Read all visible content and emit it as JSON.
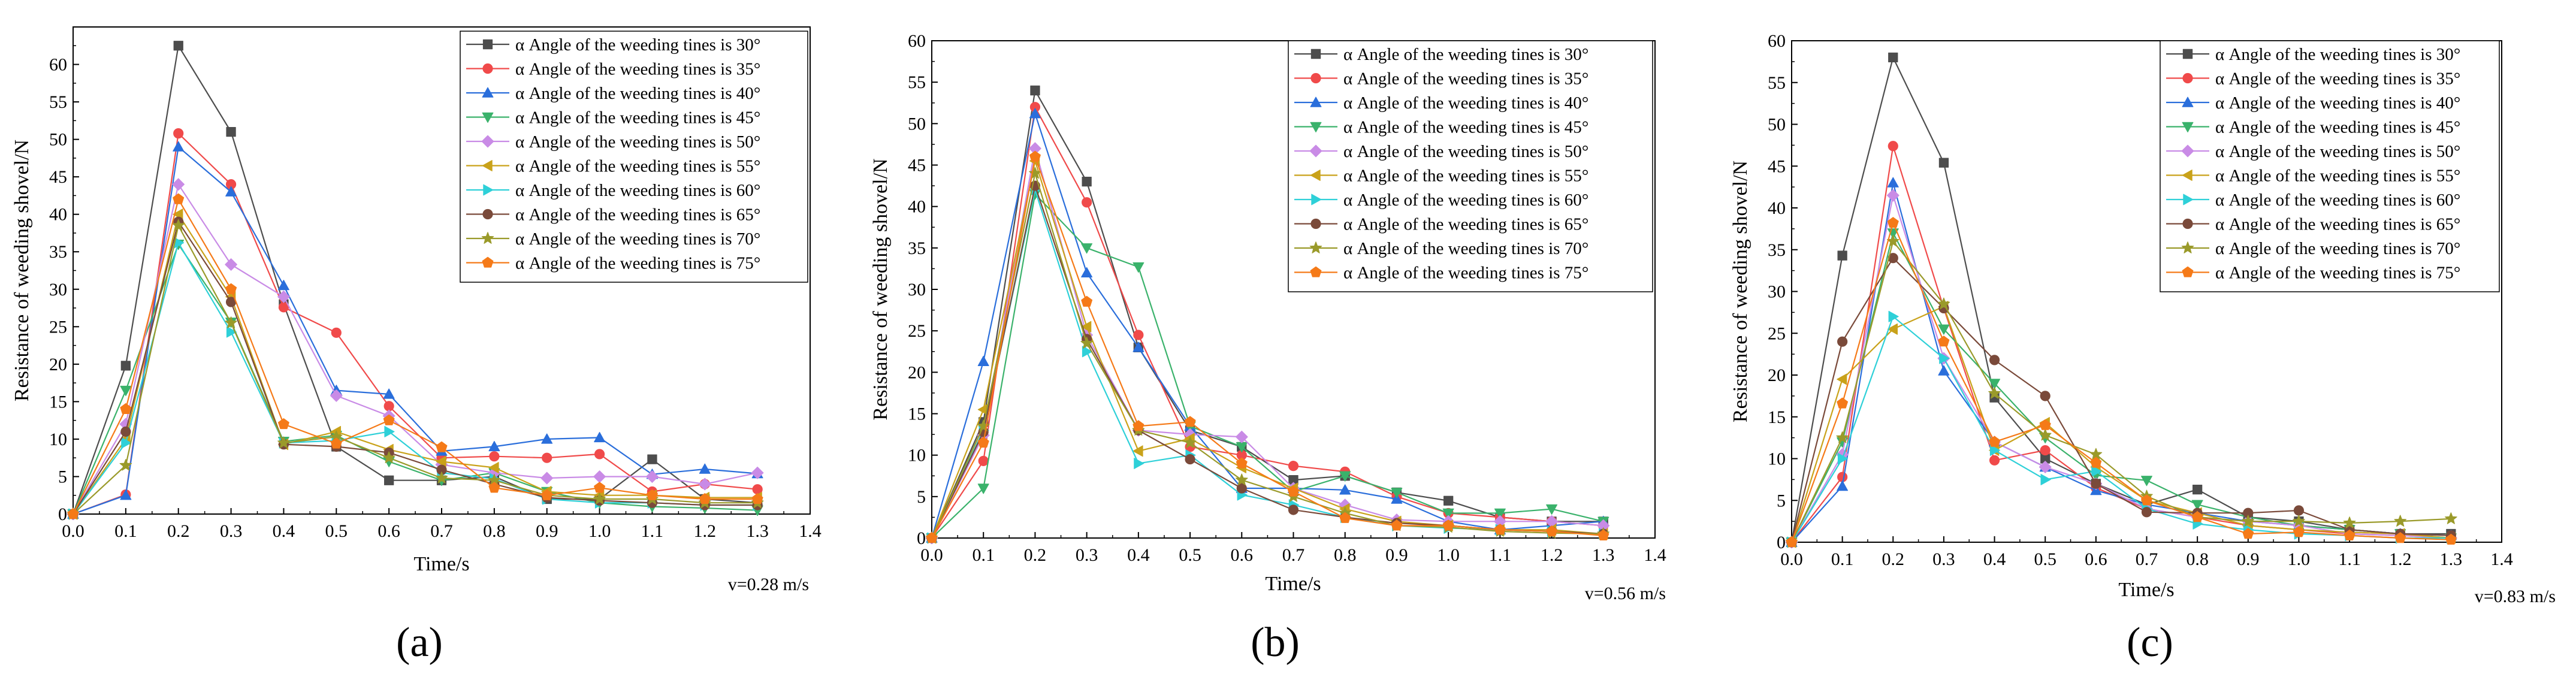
{
  "chart_data": [
    {
      "type": "line",
      "panel_label": "(a)",
      "speed_note": "v=0.28 m/s",
      "xlabel": "Time/s",
      "ylabel": "Resistance of weeding shovel/N",
      "xlim": [
        0,
        1.4
      ],
      "ylim": [
        0,
        65
      ],
      "xticks": [
        "0.0",
        "0.1",
        "0.2",
        "0.3",
        "0.4",
        "0.5",
        "0.6",
        "0.7",
        "0.8",
        "0.9",
        "1.0",
        "1.1",
        "1.2",
        "1.3",
        "1.4"
      ],
      "yticks": [
        "0",
        "5",
        "10",
        "15",
        "20",
        "25",
        "30",
        "35",
        "40",
        "45",
        "50",
        "55",
        "60"
      ],
      "legend_position": "top-right",
      "x": [
        0,
        0.1,
        0.2,
        0.3,
        0.4,
        0.5,
        0.6,
        0.7,
        0.8,
        0.9,
        1.0,
        1.1,
        1.2,
        1.3
      ],
      "series": [
        {
          "name": "α Angle of the weeding tines is 30°",
          "values": [
            0,
            19.8,
            62.5,
            51,
            28,
            9,
            4.5,
            4.5,
            5,
            2,
            2,
            7.3,
            2,
            1.5
          ]
        },
        {
          "name": "α Angle of the weeding tines is 35°",
          "values": [
            0,
            2.6,
            50.8,
            44,
            27.6,
            24.2,
            14.4,
            7.5,
            7.7,
            7.5,
            8,
            3,
            4,
            3.3
          ]
        },
        {
          "name": "α Angle of the weeding tines is 40°",
          "values": [
            0,
            2.5,
            49,
            43,
            30.5,
            16.5,
            16,
            8.4,
            9,
            10,
            10.2,
            5.3,
            6,
            5.4
          ]
        },
        {
          "name": "α Angle of the weeding tines is 45°",
          "values": [
            0,
            16.5,
            36,
            25.6,
            9.7,
            10.5,
            7,
            4.5,
            5.5,
            3,
            1.5,
            1,
            0.8,
            0.5
          ]
        },
        {
          "name": "α Angle of the weeding tines is 50°",
          "values": [
            0,
            12,
            44,
            33.3,
            29,
            15.8,
            13.1,
            6.6,
            5.5,
            4.8,
            5,
            5,
            4,
            5.5
          ]
        },
        {
          "name": "α Angle of the weeding tines is 55°",
          "values": [
            0,
            10,
            40,
            29,
            9.3,
            11,
            8.6,
            7,
            6.2,
            3,
            2.5,
            2.5,
            2.2,
            2.2
          ]
        },
        {
          "name": "α Angle of the weeding tines is 60°",
          "values": [
            0,
            9.5,
            36.2,
            24.3,
            9.5,
            9.8,
            11,
            5.5,
            4.7,
            2,
            1.5,
            1.5,
            1.2,
            1.2
          ]
        },
        {
          "name": "α Angle of the weeding tines is 65°",
          "values": [
            0,
            11,
            39,
            28.3,
            9.3,
            9,
            8.2,
            5.9,
            4,
            2.2,
            1.8,
            1.5,
            1.2,
            1.2
          ]
        },
        {
          "name": "α Angle of the weeding tines is 70°",
          "values": [
            0,
            6.5,
            38.5,
            25.5,
            9.5,
            10.3,
            7.5,
            4.8,
            4.5,
            2.5,
            2,
            2,
            1.5,
            1.5
          ]
        },
        {
          "name": "α Angle of the weeding tines is 75°",
          "values": [
            0,
            14,
            42,
            30,
            12,
            9.4,
            12.5,
            8.9,
            3.5,
            2.5,
            3.5,
            2.5,
            2,
            2
          ]
        }
      ]
    },
    {
      "type": "line",
      "panel_label": "(b)",
      "speed_note": "v=0.56 m/s",
      "xlabel": "Time/s",
      "ylabel": "Resistance of weeding shovel/N",
      "xlim": [
        0,
        1.4
      ],
      "ylim": [
        0,
        60
      ],
      "xticks": [
        "0.0",
        "0.1",
        "0.2",
        "0.3",
        "0.4",
        "0.5",
        "0.6",
        "0.7",
        "0.8",
        "0.9",
        "1.0",
        "1.1",
        "1.2",
        "1.3",
        "1.4"
      ],
      "yticks": [
        "0",
        "5",
        "10",
        "15",
        "20",
        "25",
        "30",
        "35",
        "40",
        "45",
        "50",
        "55",
        "60"
      ],
      "legend_position": "top-right",
      "x": [
        0,
        0.1,
        0.2,
        0.3,
        0.4,
        0.5,
        0.6,
        0.7,
        0.8,
        0.9,
        1.0,
        1.1,
        1.2,
        1.3
      ],
      "series": [
        {
          "name": "α Angle of the weeding tines is 30°",
          "values": [
            0,
            14,
            54,
            43,
            23,
            13,
            11,
            7,
            7.5,
            5.5,
            4.5,
            2.5,
            2,
            2
          ]
        },
        {
          "name": "α Angle of the weeding tines is 35°",
          "values": [
            0,
            9.3,
            52,
            40.5,
            24.5,
            11,
            10,
            8.7,
            8,
            5,
            3,
            2.5,
            2,
            1.5
          ]
        },
        {
          "name": "α Angle of the weeding tines is 40°",
          "values": [
            0,
            21.3,
            51.2,
            32,
            23,
            13.5,
            6,
            6,
            5.8,
            4.7,
            2,
            1,
            1.5,
            2
          ]
        },
        {
          "name": "α Angle of the weeding tines is 45°",
          "values": [
            0,
            6,
            41.5,
            35,
            32.7,
            13.5,
            11,
            5.6,
            7.5,
            5.5,
            3,
            3,
            3.5,
            2
          ]
        },
        {
          "name": "α Angle of the weeding tines is 50°",
          "values": [
            0,
            12.4,
            47,
            24.5,
            13,
            12.5,
            12.2,
            6,
            4,
            2.2,
            2,
            2,
            2,
            1.5
          ]
        },
        {
          "name": "α Angle of the weeding tines is 55°",
          "values": [
            0,
            15.5,
            45.5,
            25.5,
            10.5,
            12,
            8.5,
            6,
            3.5,
            2,
            1.5,
            1,
            1,
            0.5
          ]
        },
        {
          "name": "α Angle of the weeding tines is 60°",
          "values": [
            0,
            13,
            42,
            22.5,
            9,
            10,
            5.2,
            4,
            2.5,
            1.5,
            1.2,
            1,
            0.8,
            0.5
          ]
        },
        {
          "name": "α Angle of the weeding tines is 65°",
          "values": [
            0,
            12.8,
            42.5,
            24,
            13,
            9.5,
            6,
            3.4,
            2.5,
            1.8,
            1.5,
            1,
            0.8,
            0.5
          ]
        },
        {
          "name": "α Angle of the weeding tines is 70°",
          "values": [
            0,
            13.5,
            44,
            23.5,
            13,
            11.5,
            7,
            5,
            3,
            1.5,
            1.3,
            0.8,
            0.6,
            0.5
          ]
        },
        {
          "name": "α Angle of the weeding tines is 75°",
          "values": [
            0,
            11.5,
            46,
            28.5,
            13.5,
            14,
            9,
            5.6,
            2.4,
            1.5,
            1.5,
            1,
            0.8,
            0.3
          ]
        }
      ]
    },
    {
      "type": "line",
      "panel_label": "(c)",
      "speed_note": "v=0.83 m/s",
      "xlabel": "Time/s",
      "ylabel": "Resistance of weeding shovel/N",
      "xlim": [
        0,
        1.4
      ],
      "ylim": [
        0,
        60
      ],
      "xticks": [
        "0.0",
        "0.1",
        "0.2",
        "0.3",
        "0.4",
        "0.5",
        "0.6",
        "0.7",
        "0.8",
        "0.9",
        "1.0",
        "1.1",
        "1.2",
        "1.3",
        "1.4"
      ],
      "yticks": [
        "0",
        "5",
        "10",
        "15",
        "20",
        "25",
        "30",
        "35",
        "40",
        "45",
        "50",
        "55",
        "60"
      ],
      "legend_position": "top-right",
      "x": [
        0,
        0.1,
        0.2,
        0.3,
        0.4,
        0.5,
        0.6,
        0.7,
        0.8,
        0.9,
        1.0,
        1.1,
        1.2,
        1.3
      ],
      "series": [
        {
          "name": "α Angle of the weeding tines is 30°",
          "values": [
            0,
            34.3,
            58,
            45.4,
            17.3,
            10,
            7,
            4.5,
            6.3,
            3,
            2.5,
            1.5,
            1,
            1
          ]
        },
        {
          "name": "α Angle of the weeding tines is 35°",
          "values": [
            0,
            7.8,
            47.4,
            28,
            9.8,
            11,
            6.5,
            4,
            3,
            2,
            1.5,
            1,
            0.8,
            0.5
          ]
        },
        {
          "name": "α Angle of the weeding tines is 40°",
          "values": [
            0,
            6.7,
            43,
            20.5,
            12,
            9,
            6.2,
            4.5,
            3.5,
            2.5,
            2,
            1.5,
            1,
            0.8
          ]
        },
        {
          "name": "α Angle of the weeding tines is 45°",
          "values": [
            0,
            12,
            37,
            25.5,
            19,
            12.5,
            8,
            7.4,
            4.5,
            3,
            2,
            1.5,
            1,
            0.5
          ]
        },
        {
          "name": "α Angle of the weeding tines is 50°",
          "values": [
            0,
            10.5,
            41.5,
            22,
            12,
            9,
            7,
            4,
            3,
            2.5,
            2,
            1,
            0.8,
            0.5
          ]
        },
        {
          "name": "α Angle of the weeding tines is 55°",
          "values": [
            0,
            19.5,
            25.5,
            28.2,
            11,
            14.3,
            9,
            5,
            3.5,
            2,
            1.5,
            1.2,
            1,
            0.5
          ]
        },
        {
          "name": "α Angle of the weeding tines is 60°",
          "values": [
            0,
            10,
            27,
            22,
            11,
            7.5,
            8.5,
            4,
            2.2,
            1.5,
            1,
            0.8,
            0.5,
            0.5
          ]
        },
        {
          "name": "α Angle of the weeding tines is 65°",
          "values": [
            0,
            24,
            34,
            28,
            21.8,
            17.5,
            7,
            3.6,
            3.5,
            3.5,
            3.8,
            1.5,
            1,
            0.8
          ]
        },
        {
          "name": "α Angle of the weeding tines is 70°",
          "values": [
            0,
            12.5,
            36,
            28.5,
            17.8,
            12.8,
            10.5,
            5.5,
            3,
            2.5,
            2.5,
            2.3,
            2.5,
            2.8
          ]
        },
        {
          "name": "α Angle of the weeding tines is 75°",
          "values": [
            0,
            16.6,
            38.2,
            24,
            12,
            14,
            9.5,
            5,
            3,
            1,
            1.2,
            0.8,
            0.5,
            0.3
          ]
        }
      ]
    }
  ],
  "style": {
    "series_colors": [
      "#4d4d4d",
      "#f04a4a",
      "#2a6edb",
      "#3ab26b",
      "#c98be6",
      "#c9a21a",
      "#2ed0d8",
      "#7a4a3a",
      "#9a9a2a",
      "#f57a18"
    ],
    "series_markers": [
      "square",
      "circle",
      "triangle-up",
      "triangle-down",
      "diamond",
      "triangle-left",
      "triangle-right",
      "circle",
      "star",
      "pentagon"
    ]
  }
}
